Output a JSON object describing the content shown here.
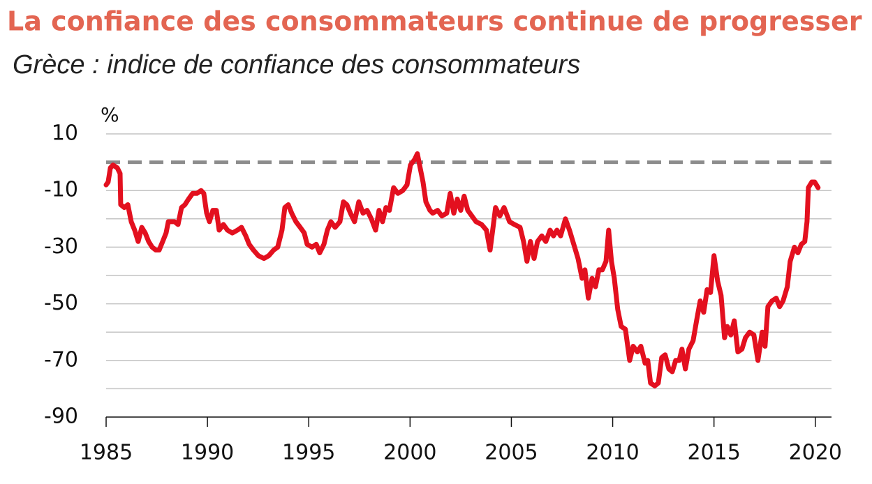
{
  "chart_data": {
    "type": "line",
    "title": "La confiance des consommateurs continue de progresser",
    "subtitle": "Grèce : indice de confiance des consommateurs",
    "y_unit": "%",
    "xlim": [
      1985,
      2020.8
    ],
    "xticks": [
      1985,
      1990,
      1995,
      2000,
      2005,
      2010,
      2015,
      2020
    ],
    "ylim": [
      -90,
      10
    ],
    "yticks": [
      10,
      -10,
      -30,
      -50,
      -70,
      -90
    ],
    "minor_yticks": [
      -20,
      -40,
      -60,
      -80
    ],
    "grid": true,
    "hline": {
      "value": 0,
      "style": "dashed",
      "color": "#8c8c8c"
    },
    "series": [
      {
        "name": "Grèce",
        "color": "#e3101f",
        "x": [
          1985.0,
          1985.1,
          1985.21,
          1985.34,
          1985.55,
          1985.69,
          1985.72,
          1985.9,
          1986.07,
          1986.24,
          1986.41,
          1986.58,
          1986.76,
          1986.93,
          1987.1,
          1987.27,
          1987.45,
          1987.62,
          1987.79,
          1987.96,
          1988.07,
          1988.24,
          1988.38,
          1988.55,
          1988.72,
          1988.89,
          1989.07,
          1989.27,
          1989.48,
          1989.69,
          1989.82,
          1989.96,
          1990.1,
          1990.27,
          1990.44,
          1990.58,
          1990.79,
          1990.99,
          1991.23,
          1991.48,
          1991.68,
          1991.89,
          1992.06,
          1992.27,
          1992.51,
          1992.79,
          1993.03,
          1993.27,
          1993.47,
          1993.68,
          1993.82,
          1993.99,
          1994.16,
          1994.37,
          1994.58,
          1994.78,
          1994.92,
          1995.16,
          1995.37,
          1995.54,
          1995.75,
          1995.92,
          1996.09,
          1996.3,
          1996.54,
          1996.71,
          1996.88,
          1997.06,
          1997.26,
          1997.47,
          1997.68,
          1997.88,
          1998.09,
          1998.3,
          1998.47,
          1998.64,
          1998.81,
          1998.98,
          1999.19,
          1999.4,
          1999.64,
          1999.85,
          2000.02,
          2000.23,
          2000.36,
          2000.5,
          2000.64,
          2000.78,
          2000.98,
          2001.12,
          2001.36,
          2001.57,
          2001.81,
          2001.98,
          2002.16,
          2002.33,
          2002.5,
          2002.67,
          2002.85,
          2003.05,
          2003.26,
          2003.53,
          2003.77,
          2003.95,
          2004.08,
          2004.22,
          2004.43,
          2004.64,
          2004.91,
          2005.15,
          2005.43,
          2005.6,
          2005.77,
          2005.94,
          2006.12,
          2006.29,
          2006.5,
          2006.7,
          2006.91,
          2007.08,
          2007.25,
          2007.43,
          2007.67,
          2007.87,
          2008.08,
          2008.29,
          2008.49,
          2008.63,
          2008.8,
          2008.98,
          2009.15,
          2009.32,
          2009.49,
          2009.67,
          2009.8,
          2009.94,
          2010.08,
          2010.25,
          2010.42,
          2010.63,
          2010.84,
          2011.01,
          2011.22,
          2011.39,
          2011.6,
          2011.73,
          2011.87,
          2012.08,
          2012.25,
          2012.42,
          2012.59,
          2012.77,
          2012.94,
          2013.11,
          2013.28,
          2013.42,
          2013.59,
          2013.76,
          2013.97,
          2014.14,
          2014.32,
          2014.49,
          2014.66,
          2014.83,
          2015.0,
          2015.18,
          2015.35,
          2015.52,
          2015.66,
          2015.83,
          2016.0,
          2016.18,
          2016.38,
          2016.55,
          2016.76,
          2016.97,
          2017.17,
          2017.38,
          2017.52,
          2017.66,
          2017.86,
          2018.07,
          2018.24,
          2018.41,
          2018.62,
          2018.76,
          2018.97,
          2019.14,
          2019.31,
          2019.48,
          2019.59,
          2019.66,
          2019.83,
          2019.97,
          2020.14
        ],
        "values": [
          -8,
          -7,
          -2,
          -1,
          -2,
          -4,
          -15,
          -16,
          -15,
          -21,
          -24,
          -28,
          -23,
          -25,
          -28,
          -30,
          -31,
          -31,
          -28,
          -25,
          -21,
          -21,
          -21,
          -22,
          -16,
          -15,
          -13,
          -11,
          -11,
          -10,
          -11,
          -18,
          -21,
          -17,
          -17,
          -24,
          -22,
          -24,
          -25,
          -24,
          -23,
          -26,
          -29,
          -31,
          -33,
          -34,
          -33,
          -31,
          -30,
          -24,
          -16,
          -15,
          -18,
          -21,
          -23,
          -25,
          -29,
          -30,
          -29,
          -32,
          -29,
          -24,
          -21,
          -23,
          -21,
          -14,
          -15,
          -18,
          -21,
          -14,
          -18,
          -17,
          -20,
          -24,
          -17,
          -21,
          -16,
          -17,
          -9,
          -11,
          -10,
          -8,
          -1,
          1,
          3,
          -2,
          -7,
          -14,
          -17,
          -18,
          -17,
          -19,
          -18,
          -11,
          -18,
          -13,
          -17,
          -12,
          -17,
          -19,
          -21,
          -22,
          -24,
          -31,
          -24,
          -16,
          -19,
          -16,
          -21,
          -22,
          -23,
          -28,
          -35,
          -28,
          -34,
          -28,
          -26,
          -28,
          -24,
          -26,
          -24,
          -26,
          -20,
          -24,
          -29,
          -34,
          -41,
          -38,
          -48,
          -41,
          -44,
          -38,
          -38,
          -35,
          -24,
          -35,
          -41,
          -52,
          -58,
          -59,
          -70,
          -65,
          -67,
          -65,
          -71,
          -70,
          -78,
          -79,
          -78,
          -69,
          -68,
          -73,
          -74,
          -70,
          -70,
          -66,
          -73,
          -66,
          -63,
          -56,
          -49,
          -53,
          -45,
          -46,
          -33,
          -42,
          -47,
          -62,
          -58,
          -61,
          -56,
          -67,
          -66,
          -62,
          -60,
          -61,
          -70,
          -60,
          -65,
          -51,
          -49,
          -48,
          -51,
          -49,
          -44,
          -35,
          -30,
          -32,
          -29,
          -28,
          -21,
          -9,
          -7,
          -7,
          -9
        ]
      }
    ]
  }
}
